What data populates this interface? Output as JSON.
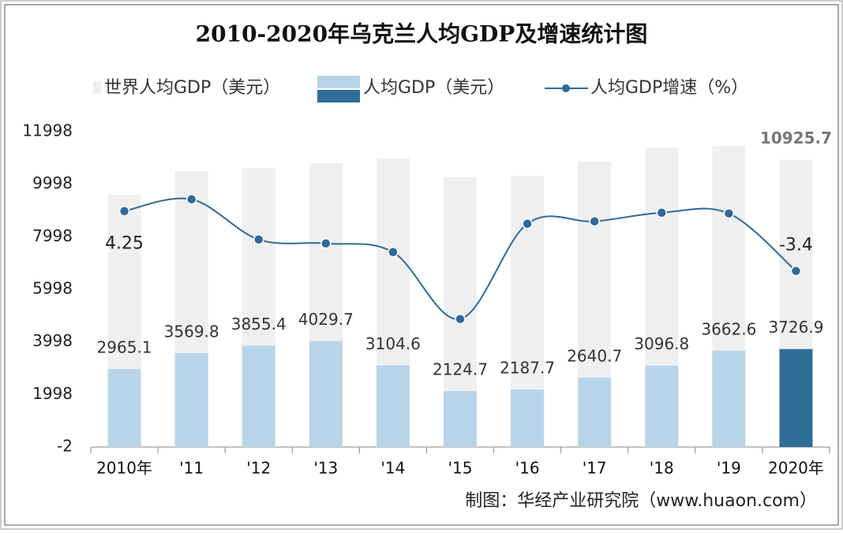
{
  "chart_data": {
    "type": "bar",
    "title": "2010-2020年乌克兰人均GDP及增速统计图",
    "source": "制图：华经产业研究院（www.huaon.com）",
    "categories": [
      "2010年",
      "'11",
      "'12",
      "'13",
      "'14",
      "'15",
      "'16",
      "'17",
      "'18",
      "'19",
      "2020年"
    ],
    "ylim": [
      -2,
      11998
    ],
    "yticks": [
      -2,
      1998,
      3998,
      5998,
      7998,
      9998,
      11998
    ],
    "y2lim": [
      -25.9,
      14.4
    ],
    "series": [
      {
        "name": "世界人均GDP（美元）",
        "color": "#efefef",
        "values": [
          9598,
          10498,
          10618,
          10798,
          10978,
          10258,
          10318,
          10858,
          11398,
          11458,
          10925.7
        ],
        "value_labels": [
          null,
          null,
          null,
          null,
          null,
          null,
          null,
          null,
          null,
          null,
          "10925.7"
        ]
      },
      {
        "name": "人均GDP（美元）",
        "color": "#b8d4e8",
        "highlight_color": "#2e6e96",
        "values": [
          2965.1,
          3569.8,
          3855.4,
          4029.7,
          3104.6,
          2124.7,
          2187.7,
          2640.7,
          3096.8,
          3662.6,
          3726.9
        ]
      },
      {
        "name": "人均GDP增速（%）",
        "type": "line",
        "axis": "y2",
        "color": "#2e6a9a",
        "values": [
          4.25,
          5.76,
          0.62,
          0.12,
          -0.99,
          -9.54,
          2.64,
          2.94,
          4.05,
          3.95,
          -3.4
        ],
        "value_labels": [
          "4.25",
          null,
          null,
          null,
          null,
          null,
          null,
          null,
          null,
          null,
          "-3.4"
        ]
      }
    ]
  }
}
